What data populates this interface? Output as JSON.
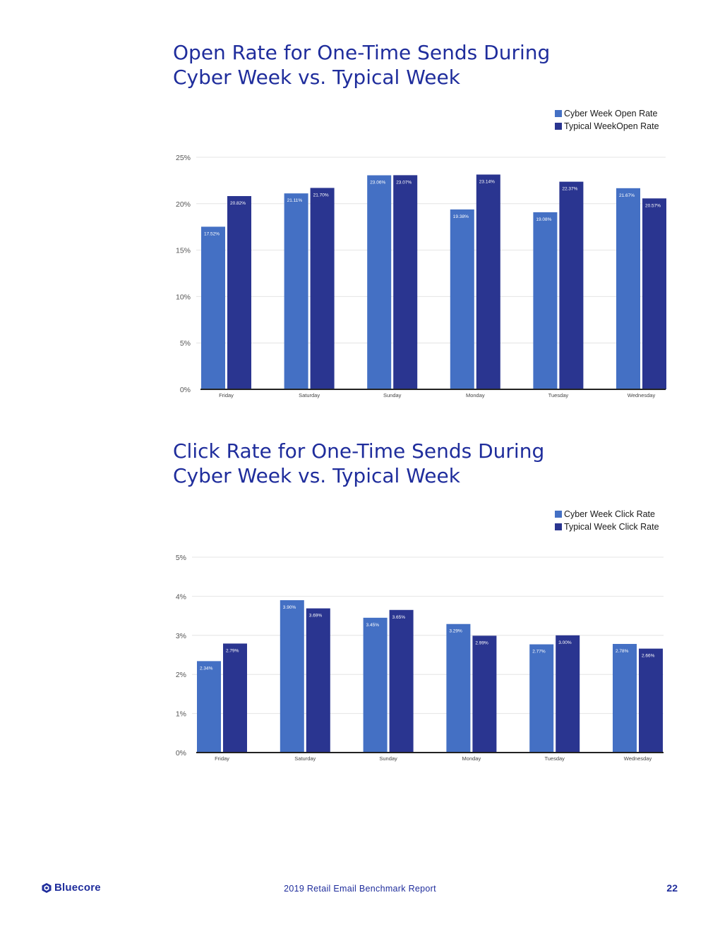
{
  "charts": [
    {
      "title_line1": "Open Rate for One-Time Sends During",
      "title_line2": "Cyber Week vs. Typical Week",
      "legend": [
        "Cyber Week Open Rate",
        "Typical WeekOpen Rate"
      ]
    },
    {
      "title_line1": "Click Rate for One-Time Sends During",
      "title_line2": "Cyber Week vs. Typical Week",
      "legend": [
        "Cyber Week Click Rate",
        "Typical Week Click Rate"
      ]
    }
  ],
  "chart_data": [
    {
      "type": "bar",
      "title": "Open Rate for One-Time Sends During Cyber Week vs. Typical Week",
      "categories": [
        "Friday",
        "Saturday",
        "Sunday",
        "Monday",
        "Tuesday",
        "Wednesday"
      ],
      "series": [
        {
          "name": "Cyber Week Open Rate",
          "values": [
            17.52,
            21.11,
            23.06,
            19.38,
            19.08,
            21.67
          ],
          "labels": [
            "17.52%",
            "21.11%",
            "23.06%",
            "19.38%",
            "19.08%",
            "21.67%"
          ],
          "color": "#4470c4"
        },
        {
          "name": "Typical WeekOpen Rate",
          "values": [
            20.82,
            21.7,
            23.07,
            23.14,
            22.37,
            20.57
          ],
          "labels": [
            "20.82%",
            "21.70%",
            "23.07%",
            "23.14%",
            "22.37%",
            "20.57%"
          ],
          "color": "#2a3590"
        }
      ],
      "yticks": [
        "0%",
        "5%",
        "10%",
        "15%",
        "20%",
        "25%"
      ],
      "ylim": [
        0,
        25
      ],
      "grid": true,
      "legend_position": "top-right"
    },
    {
      "type": "bar",
      "title": "Click Rate for One-Time Sends During Cyber Week vs. Typical Week",
      "categories": [
        "Friday",
        "Saturday",
        "Sunday",
        "Monday",
        "Tuesday",
        "Wednesday"
      ],
      "series": [
        {
          "name": "Cyber Week Click Rate",
          "values": [
            2.34,
            3.9,
            3.45,
            3.29,
            2.77,
            2.78
          ],
          "labels": [
            "2.34%",
            "3.90%",
            "3.45%",
            "3.29%",
            "2.77%",
            "2.78%"
          ],
          "color": "#4470c4"
        },
        {
          "name": "Typical Week Click Rate",
          "values": [
            2.79,
            3.69,
            3.65,
            2.99,
            3.0,
            2.66
          ],
          "labels": [
            "2.79%",
            "3.69%",
            "3.65%",
            "2.99%",
            "3.00%",
            "2.66%"
          ],
          "color": "#2a3590"
        }
      ],
      "yticks": [
        "0%",
        "1%",
        "2%",
        "3%",
        "4%",
        "5%"
      ],
      "ylim": [
        0,
        5
      ],
      "grid": true,
      "legend_position": "top-right"
    }
  ],
  "footer": {
    "brand": "Bluecore",
    "report": "2019 Retail Email Benchmark Report",
    "page": "22"
  }
}
